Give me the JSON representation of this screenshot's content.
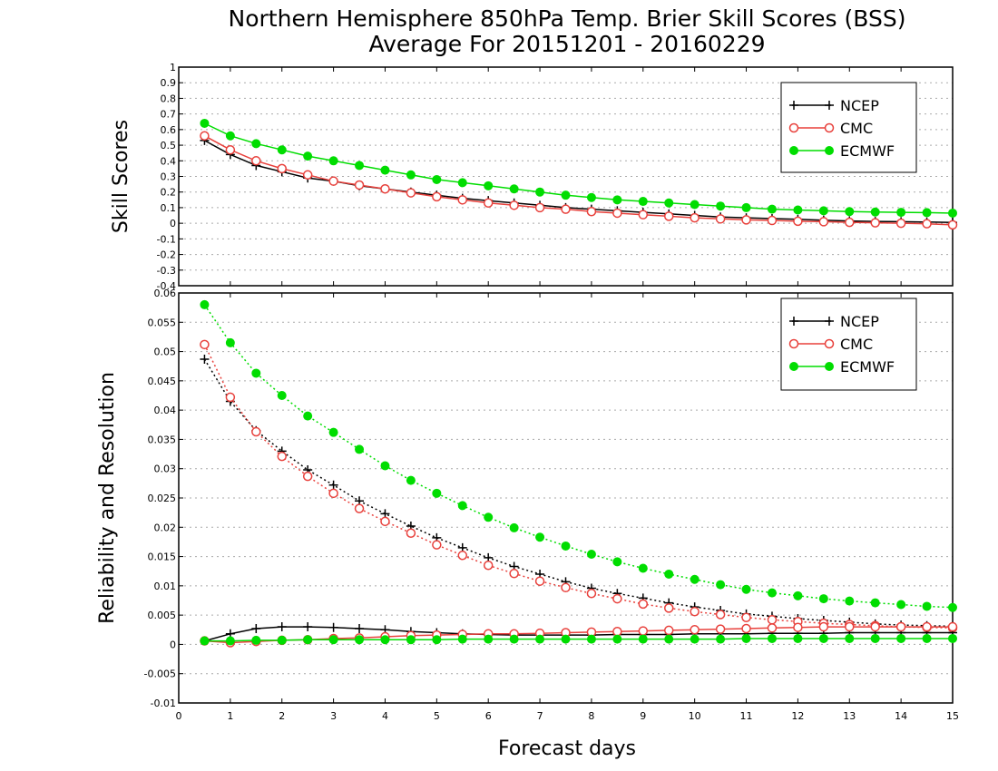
{
  "figure": {
    "title_line1": "Northern Hemisphere 850hPa Temp. Brier Skill Scores (BSS)",
    "title_line2": "Average For 20151201 - 20160229",
    "xlabel": "Forecast days"
  },
  "colors": {
    "NCEP": "#000000",
    "CMC": "#e8413c",
    "ECMWF": "#00dd00",
    "grid": "#aaaaaa"
  },
  "chart_data": [
    {
      "type": "line",
      "ylabel": "Skill Scores",
      "xlim": [
        0,
        15
      ],
      "ylim": [
        -0.4,
        1
      ],
      "xticks": [
        "0",
        "1",
        "2",
        "3",
        "4",
        "5",
        "6",
        "7",
        "8",
        "9",
        "10",
        "11",
        "12",
        "13",
        "14",
        "15"
      ],
      "yticks": [
        "-0.4",
        "-0.3",
        "-0.2",
        "-0.1",
        "0",
        "0.1",
        "0.2",
        "0.3",
        "0.4",
        "0.5",
        "0.6",
        "0.7",
        "0.8",
        "0.9",
        "1"
      ],
      "grid": true,
      "legend": "top-right",
      "x": [
        0.5,
        1,
        1.5,
        2,
        2.5,
        3,
        3.5,
        4,
        4.5,
        5,
        5.5,
        6,
        6.5,
        7,
        7.5,
        8,
        8.5,
        9,
        9.5,
        10,
        10.5,
        11,
        11.5,
        12,
        12.5,
        13,
        13.5,
        14,
        14.5,
        15
      ],
      "series": [
        {
          "name": "NCEP",
          "marker": "plus",
          "dash": "solid",
          "values": [
            0.53,
            0.44,
            0.37,
            0.33,
            0.29,
            0.27,
            0.24,
            0.22,
            0.2,
            0.18,
            0.16,
            0.145,
            0.13,
            0.115,
            0.1,
            0.09,
            0.08,
            0.07,
            0.06,
            0.05,
            0.04,
            0.035,
            0.03,
            0.025,
            0.02,
            0.015,
            0.012,
            0.01,
            0.008,
            0.005
          ]
        },
        {
          "name": "CMC",
          "marker": "open-circle",
          "dash": "solid",
          "values": [
            0.56,
            0.47,
            0.4,
            0.35,
            0.31,
            0.27,
            0.245,
            0.22,
            0.195,
            0.17,
            0.15,
            0.13,
            0.115,
            0.1,
            0.09,
            0.075,
            0.065,
            0.055,
            0.045,
            0.035,
            0.028,
            0.022,
            0.018,
            0.013,
            0.01,
            0.006,
            0.003,
            0.0,
            -0.003,
            -0.01
          ]
        },
        {
          "name": "ECMWF",
          "marker": "filled-circle",
          "dash": "solid",
          "values": [
            0.64,
            0.56,
            0.51,
            0.47,
            0.43,
            0.4,
            0.37,
            0.34,
            0.31,
            0.28,
            0.26,
            0.24,
            0.22,
            0.2,
            0.18,
            0.165,
            0.15,
            0.14,
            0.13,
            0.12,
            0.11,
            0.1,
            0.09,
            0.085,
            0.08,
            0.075,
            0.072,
            0.07,
            0.068,
            0.065
          ]
        }
      ]
    },
    {
      "type": "line",
      "ylabel": "Reliability and Resolution",
      "xlabel": "Forecast days",
      "xlim": [
        0,
        15
      ],
      "ylim": [
        -0.01,
        0.06
      ],
      "xticks": [
        "0",
        "1",
        "2",
        "3",
        "4",
        "5",
        "6",
        "7",
        "8",
        "9",
        "10",
        "11",
        "12",
        "13",
        "14",
        "15"
      ],
      "yticks": [
        "-0.01",
        "-0.005",
        "0",
        "0.005",
        "0.01",
        "0.015",
        "0.02",
        "0.025",
        "0.03",
        "0.035",
        "0.04",
        "0.045",
        "0.05",
        "0.055",
        "0.06"
      ],
      "grid": true,
      "legend": "top-right",
      "x": [
        0.5,
        1,
        1.5,
        2,
        2.5,
        3,
        3.5,
        4,
        4.5,
        5,
        5.5,
        6,
        6.5,
        7,
        7.5,
        8,
        8.5,
        9,
        9.5,
        10,
        10.5,
        11,
        11.5,
        12,
        12.5,
        13,
        13.5,
        14,
        14.5,
        15
      ],
      "series": [
        {
          "name": "NCEP",
          "metric": "resolution",
          "marker": "plus",
          "dash": "dotted",
          "values": [
            0.0487,
            0.0415,
            0.0365,
            0.033,
            0.0298,
            0.0272,
            0.0245,
            0.0223,
            0.0202,
            0.0182,
            0.0165,
            0.0148,
            0.0133,
            0.012,
            0.0107,
            0.0096,
            0.0087,
            0.0079,
            0.0071,
            0.0064,
            0.0058,
            0.0052,
            0.0048,
            0.0044,
            0.0041,
            0.0038,
            0.0035,
            0.0033,
            0.0032,
            0.0031
          ]
        },
        {
          "name": "CMC",
          "metric": "resolution",
          "marker": "open-circle",
          "dash": "dotted",
          "values": [
            0.0512,
            0.0422,
            0.0363,
            0.0321,
            0.0287,
            0.0258,
            0.0232,
            0.021,
            0.019,
            0.017,
            0.0152,
            0.0135,
            0.0121,
            0.0108,
            0.0097,
            0.0087,
            0.0078,
            0.0069,
            0.0062,
            0.0056,
            0.0051,
            0.0046,
            0.0042,
            0.0039,
            0.0036,
            0.0034,
            0.0032,
            0.003,
            0.0029,
            0.0028
          ]
        },
        {
          "name": "ECMWF",
          "metric": "resolution",
          "marker": "filled-circle",
          "dash": "dotted",
          "values": [
            0.058,
            0.0515,
            0.0463,
            0.0425,
            0.039,
            0.0362,
            0.0333,
            0.0305,
            0.028,
            0.0258,
            0.0237,
            0.0217,
            0.0199,
            0.0183,
            0.0168,
            0.0154,
            0.0141,
            0.013,
            0.012,
            0.0111,
            0.0102,
            0.0094,
            0.0088,
            0.0083,
            0.0078,
            0.0074,
            0.0071,
            0.0068,
            0.0065,
            0.0063
          ]
        },
        {
          "name": "NCEP",
          "metric": "reliability",
          "marker": "plus",
          "dash": "solid",
          "values": [
            0.0006,
            0.0018,
            0.0027,
            0.003,
            0.003,
            0.0029,
            0.0027,
            0.0025,
            0.0022,
            0.002,
            0.0018,
            0.0017,
            0.0016,
            0.0016,
            0.0016,
            0.0016,
            0.0017,
            0.0017,
            0.0017,
            0.0018,
            0.0018,
            0.0018,
            0.0019,
            0.0019,
            0.0019,
            0.002,
            0.002,
            0.002,
            0.002,
            0.002
          ]
        },
        {
          "name": "CMC",
          "metric": "reliability",
          "marker": "open-circle",
          "dash": "solid",
          "values": [
            0.0006,
            0.0003,
            0.0005,
            0.0007,
            0.0008,
            0.001,
            0.0011,
            0.0013,
            0.0015,
            0.0016,
            0.0017,
            0.0018,
            0.0018,
            0.0019,
            0.002,
            0.0021,
            0.0022,
            0.0023,
            0.0024,
            0.0025,
            0.0026,
            0.0027,
            0.0028,
            0.0029,
            0.003,
            0.003,
            0.003,
            0.003,
            0.003,
            0.003
          ]
        },
        {
          "name": "ECMWF",
          "metric": "reliability",
          "marker": "filled-circle",
          "dash": "solid",
          "values": [
            0.0006,
            0.0006,
            0.0007,
            0.0007,
            0.0008,
            0.0008,
            0.0008,
            0.0008,
            0.0008,
            0.0008,
            0.0009,
            0.0009,
            0.0009,
            0.0009,
            0.0009,
            0.0009,
            0.0009,
            0.0009,
            0.0009,
            0.0009,
            0.0009,
            0.001,
            0.001,
            0.001,
            0.001,
            0.001,
            0.001,
            0.001,
            0.001,
            0.001
          ]
        }
      ]
    }
  ]
}
